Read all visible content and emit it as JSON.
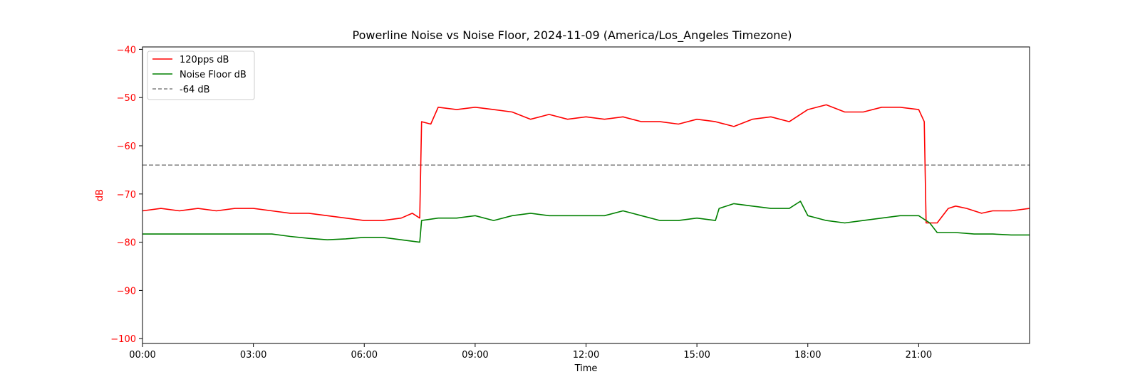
{
  "chart_data": {
    "type": "line",
    "title": "Powerline Noise vs Noise Floor, 2024-11-09 (America/Los_Angeles Timezone)",
    "xlabel": "Time",
    "ylabel": "dB",
    "ylabel_color": "#ff0000",
    "xlim_hours": [
      0,
      24
    ],
    "ylim": [
      -101,
      -39.5
    ],
    "x_ticks": [
      {
        "hour": 0,
        "label": "00:00"
      },
      {
        "hour": 3,
        "label": "03:00"
      },
      {
        "hour": 6,
        "label": "06:00"
      },
      {
        "hour": 9,
        "label": "09:00"
      },
      {
        "hour": 12,
        "label": "12:00"
      },
      {
        "hour": 15,
        "label": "15:00"
      },
      {
        "hour": 18,
        "label": "18:00"
      },
      {
        "hour": 21,
        "label": "21:00"
      }
    ],
    "y_ticks": [
      {
        "value": -40,
        "label": "−40"
      },
      {
        "value": -50,
        "label": "−50"
      },
      {
        "value": -60,
        "label": "−60"
      },
      {
        "value": -70,
        "label": "−70"
      },
      {
        "value": -80,
        "label": "−80"
      },
      {
        "value": -90,
        "label": "−90"
      },
      {
        "value": -100,
        "label": "−100"
      }
    ],
    "grid": false,
    "legend_position": "upper-left",
    "series": [
      {
        "name": "120pps dB",
        "color": "#ff0000",
        "x_hours": [
          0,
          0.5,
          1,
          1.5,
          2,
          2.5,
          3,
          3.5,
          4,
          4.5,
          5,
          5.5,
          6,
          6.5,
          7,
          7.3,
          7.5,
          7.55,
          7.8,
          8,
          8.5,
          9,
          9.5,
          10,
          10.5,
          11,
          11.5,
          12,
          12.5,
          13,
          13.5,
          14,
          14.5,
          15,
          15.5,
          16,
          16.5,
          17,
          17.5,
          18,
          18.5,
          19,
          19.5,
          20,
          20.5,
          21,
          21.15,
          21.2,
          21.5,
          21.8,
          22,
          22.3,
          22.7,
          23,
          23.5,
          24
        ],
        "values": [
          -73.5,
          -73,
          -73.5,
          -73,
          -73.5,
          -73,
          -73,
          -73.5,
          -74,
          -74,
          -74.5,
          -75,
          -75.5,
          -75.5,
          -75,
          -74,
          -75,
          -55,
          -55.5,
          -52,
          -52.5,
          -52,
          -52.5,
          -53,
          -54.5,
          -53.5,
          -54.5,
          -54,
          -54.5,
          -54,
          -55,
          -55,
          -55.5,
          -54.5,
          -55,
          -56,
          -54.5,
          -54,
          -55,
          -52.5,
          -51.5,
          -53,
          -53,
          -52,
          -52,
          -52.5,
          -55,
          -76,
          -76,
          -73,
          -72.5,
          -73,
          -74,
          -73.5,
          -73.5,
          -73
        ]
      },
      {
        "name": "Noise Floor dB",
        "color": "#008000",
        "x_hours": [
          0,
          0.5,
          1,
          1.5,
          2,
          2.5,
          3,
          3.5,
          4,
          4.5,
          5,
          5.5,
          6,
          6.5,
          7,
          7.5,
          7.55,
          8,
          8.5,
          9,
          9.5,
          10,
          10.5,
          11,
          11.5,
          12,
          12.5,
          13,
          13.5,
          14,
          14.5,
          15,
          15.5,
          15.6,
          16,
          16.5,
          17,
          17.5,
          17.8,
          18,
          18.5,
          19,
          19.5,
          20,
          20.5,
          21,
          21.3,
          21.5,
          22,
          22.5,
          23,
          23.5,
          24
        ],
        "values": [
          -78.3,
          -78.3,
          -78.3,
          -78.3,
          -78.3,
          -78.3,
          -78.3,
          -78.3,
          -78.8,
          -79.2,
          -79.5,
          -79.3,
          -79,
          -79,
          -79.5,
          -80,
          -75.5,
          -75,
          -75,
          -74.5,
          -75.5,
          -74.5,
          -74,
          -74.5,
          -74.5,
          -74.5,
          -74.5,
          -73.5,
          -74.5,
          -75.5,
          -75.5,
          -75,
          -75.5,
          -73,
          -72,
          -72.5,
          -73,
          -73,
          -71.5,
          -74.5,
          -75.5,
          -76,
          -75.5,
          -75,
          -74.5,
          -74.5,
          -76,
          -78,
          -78,
          -78.3,
          -78.3,
          -78.5,
          -78.5
        ]
      }
    ],
    "reference_lines": [
      {
        "name": "-64 dB",
        "value": -64,
        "color": "#808080",
        "style": "dashed"
      }
    ]
  }
}
